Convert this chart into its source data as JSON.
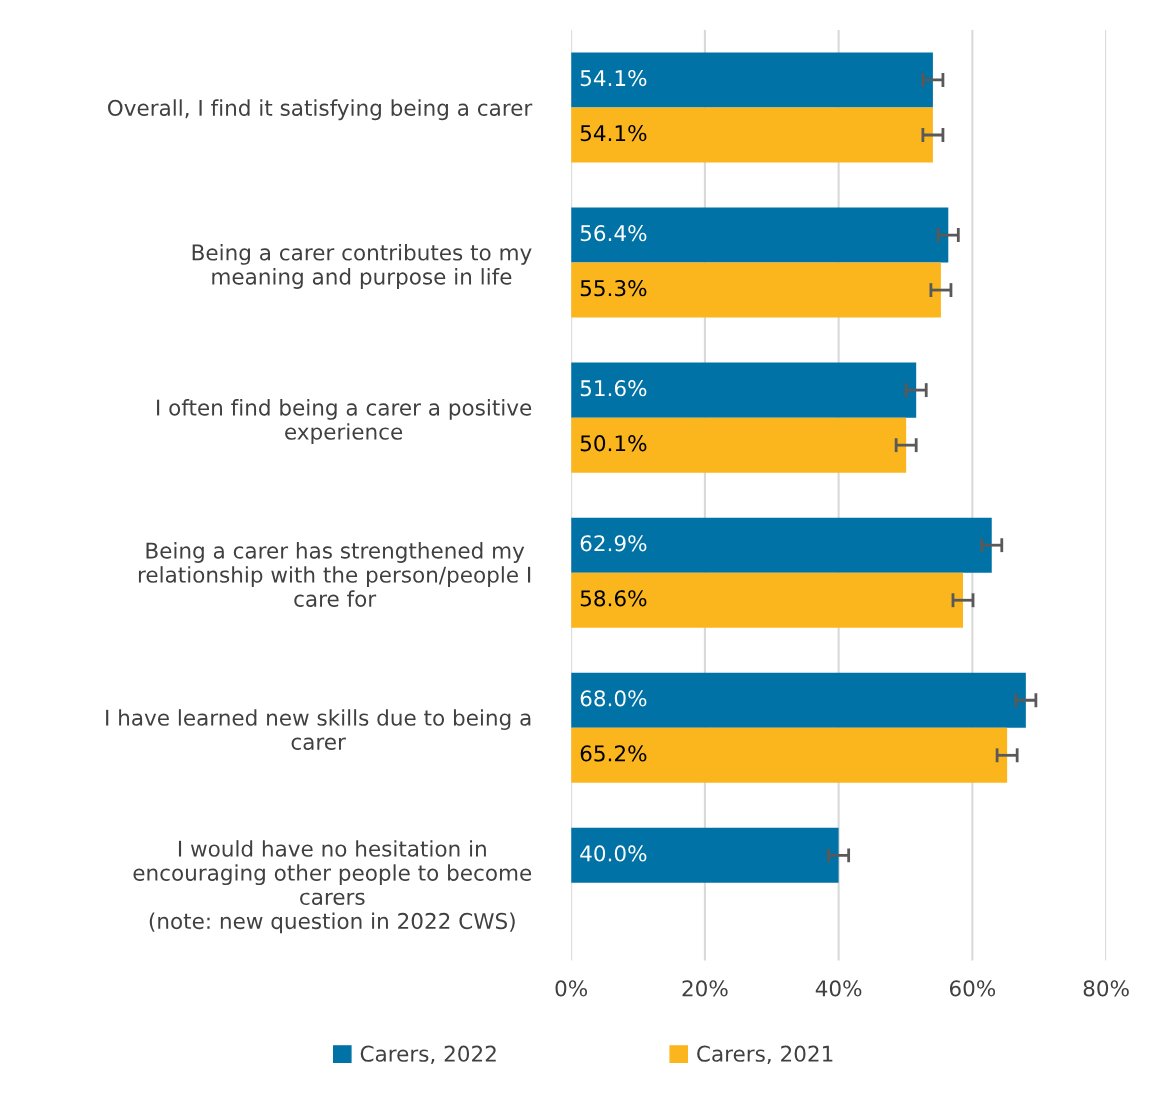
{
  "chart_data": {
    "type": "bar",
    "orientation": "horizontal",
    "categories": [
      "Overall, I find it satisfying being a carer",
      "Being a carer contributes to my\nmeaning and purpose in life",
      "I often find being a carer a positive\nexperience",
      "Being a carer has strengthened my\nrelationship with the person/people I\ncare for",
      "I have learned new skills due to being a\ncarer",
      "I would have no hesitation in\nencouraging other people to become\ncarers\n(note: new question in 2022 CWS)"
    ],
    "series": [
      {
        "name": "Carers, 2022",
        "color": "#0072a6",
        "values": [
          54.1,
          56.4,
          51.6,
          62.9,
          68.0,
          40.0
        ],
        "errors": [
          1.5,
          1.5,
          1.5,
          1.5,
          1.5,
          1.5
        ],
        "value_labels": [
          "54.1%",
          "56.4%",
          "51.6%",
          "62.9%",
          "68.0%",
          "40.0%"
        ]
      },
      {
        "name": "Carers, 2021",
        "color": "#fbb61e",
        "values": [
          54.1,
          55.3,
          50.1,
          58.6,
          65.2,
          null
        ],
        "errors": [
          1.5,
          1.5,
          1.5,
          1.5,
          1.5,
          null
        ],
        "value_labels": [
          "54.1%",
          "55.3%",
          "50.1%",
          "58.6%",
          "65.2%",
          null
        ]
      }
    ],
    "xlim": [
      0,
      80
    ],
    "xticks": [
      {
        "value": 0,
        "label": "0%"
      },
      {
        "value": 20,
        "label": "20%"
      },
      {
        "value": 40,
        "label": "40%"
      },
      {
        "value": 60,
        "label": "60%"
      },
      {
        "value": 80,
        "label": "80%"
      }
    ],
    "grid": "x",
    "legend": "bottom"
  }
}
